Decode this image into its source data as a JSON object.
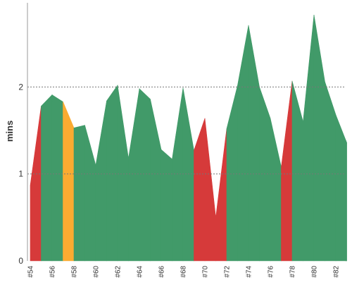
{
  "chart_data": {
    "type": "area",
    "title": "",
    "xlabel": "",
    "ylabel": "mins",
    "ylim": [
      0,
      3
    ],
    "yticks": [
      0,
      1,
      2
    ],
    "grid": {
      "y_dashed": [
        1,
        2
      ]
    },
    "legend": "none",
    "colors": {
      "green": "#419a69",
      "red": "#d63a3a",
      "orange": "#fbab31",
      "grid": "#777777",
      "axis": "#999999"
    },
    "x_start": 54,
    "x_tick_labels": [
      "#54",
      "#56",
      "#58",
      "#60",
      "#62",
      "#64",
      "#66",
      "#68",
      "#70",
      "#72",
      "#74",
      "#76",
      "#78",
      "#80",
      "#82"
    ],
    "series": [
      {
        "values": [
          0.87,
          1.78,
          1.91,
          1.83,
          1.53,
          1.56,
          1.1,
          1.84,
          2.02,
          1.18,
          1.98,
          1.86,
          1.28,
          1.17,
          1.99,
          1.27,
          1.64,
          0.5,
          1.52,
          2.02,
          2.71,
          2.0,
          1.64,
          1.08,
          2.07,
          1.6,
          2.83,
          2.06,
          1.68,
          1.36
        ],
        "status": [
          "red",
          "green",
          "green",
          "orange",
          "green",
          "green",
          "green",
          "green",
          "green",
          "green",
          "green",
          "green",
          "green",
          "green",
          "green",
          "red",
          "red",
          "red",
          "green",
          "green",
          "green",
          "green",
          "green",
          "red",
          "green",
          "green",
          "green",
          "green",
          "green",
          "green"
        ]
      }
    ]
  }
}
